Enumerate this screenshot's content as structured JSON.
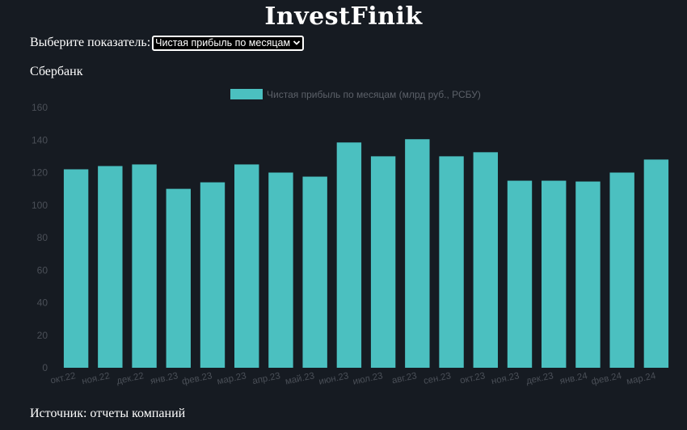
{
  "app": {
    "title": "InvestFinik"
  },
  "selector": {
    "label": "Выберите показатель:",
    "selected": "Чистая прибыль по месяцам"
  },
  "company": "Сбербанк",
  "footer": {
    "source": "Источник: отчеты компаний"
  },
  "colors": {
    "background": "#161b22",
    "bar": "#4bc0c0",
    "axis_text": "#4a4f57",
    "legend_text": "#5c6169"
  },
  "chart_data": {
    "type": "bar",
    "title": "",
    "legend": "Чистая прибыль по месяцам (млрд руб., РСБУ)",
    "legend_position": "top",
    "grid": false,
    "xlabel": "",
    "ylabel": "",
    "ylim": [
      0,
      160
    ],
    "yticks": [
      0,
      20,
      40,
      60,
      80,
      100,
      120,
      140,
      160
    ],
    "categories": [
      "окт.22",
      "ноя.22",
      "дек.22",
      "янв.23",
      "фев.23",
      "мар.23",
      "апр.23",
      "май.23",
      "июн.23",
      "июл.23",
      "авг.23",
      "сен.23",
      "окт.23",
      "ноя.23",
      "дек.23",
      "янв.24",
      "фев.24",
      "мар.24"
    ],
    "series": [
      {
        "name": "Чистая прибыль по месяцам (млрд руб., РСБУ)",
        "values": [
          122,
          124,
          125,
          110,
          114,
          125,
          120,
          117.5,
          138.5,
          130,
          140.5,
          130,
          132.5,
          115,
          115,
          114.5,
          120,
          128
        ]
      }
    ]
  }
}
